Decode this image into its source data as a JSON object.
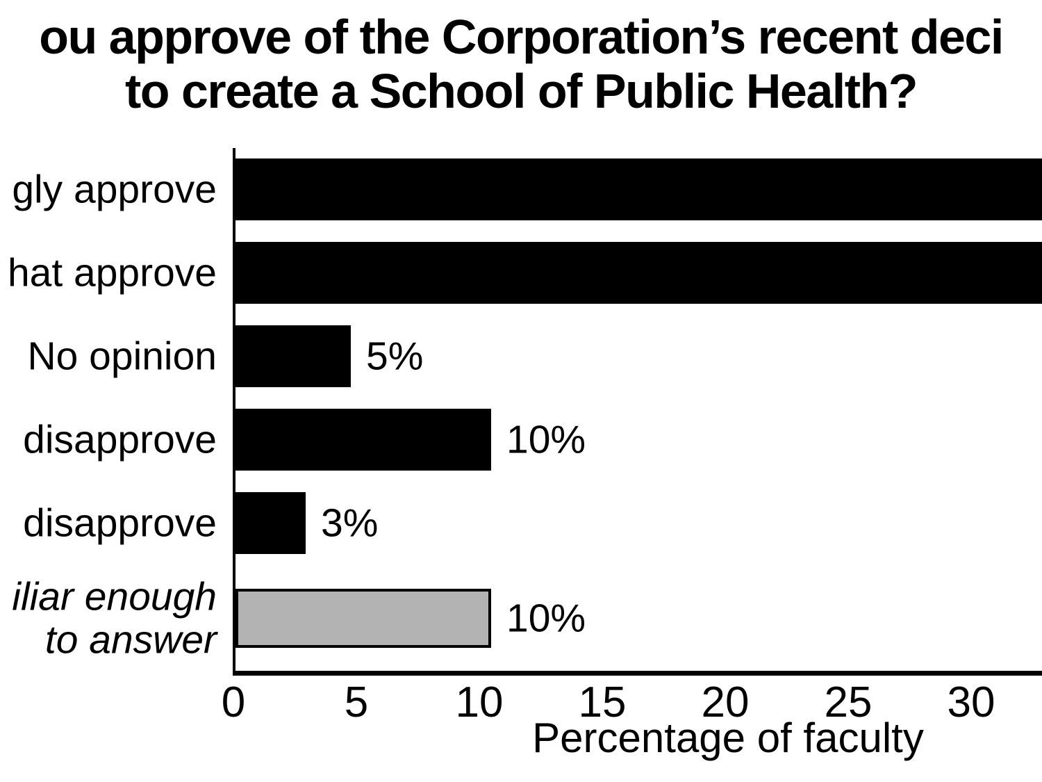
{
  "chart_data": {
    "type": "bar",
    "orientation": "horizontal",
    "title_visible_lines": [
      "ou approve of the Corporation’s recent deci",
      "to create a School of Public Health?"
    ],
    "title_note": "question text cropped at left and right image edges",
    "categories": [
      "Strongly approve",
      "Somewhat approve",
      "No opinion",
      "Somewhat disapprove",
      "Strongly disapprove",
      "Not familiar enough to answer"
    ],
    "categories_visible": [
      [
        "gly approve"
      ],
      [
        "hat approve"
      ],
      [
        "No opinion"
      ],
      [
        "disapprove"
      ],
      [
        "disapprove"
      ],
      [
        "iliar enough",
        "to answer"
      ]
    ],
    "values": [
      null,
      null,
      5,
      10,
      3,
      10
    ],
    "value_labels": [
      "",
      "",
      "5%",
      "10%",
      "3%",
      "10%"
    ],
    "bars_cropped_at_right_edge": [
      true,
      true,
      false,
      false,
      false,
      false
    ],
    "drawn_length_units": [
      33.5,
      33.5,
      4.7,
      10.4,
      2.85,
      10.4
    ],
    "bar_colors": [
      "#000000",
      "#000000",
      "#000000",
      "#000000",
      "#000000",
      "#b3b3b3"
    ],
    "gray_bar_border_color": "#000000",
    "italic_category_index": 5,
    "xlabel": "Percentage of faculty",
    "xticks": [
      0,
      5,
      10,
      15,
      20,
      25,
      30
    ],
    "xlim": [
      0,
      33
    ],
    "grid": false,
    "legend": false,
    "text_color": "#000000",
    "background_color": "#ffffff"
  }
}
